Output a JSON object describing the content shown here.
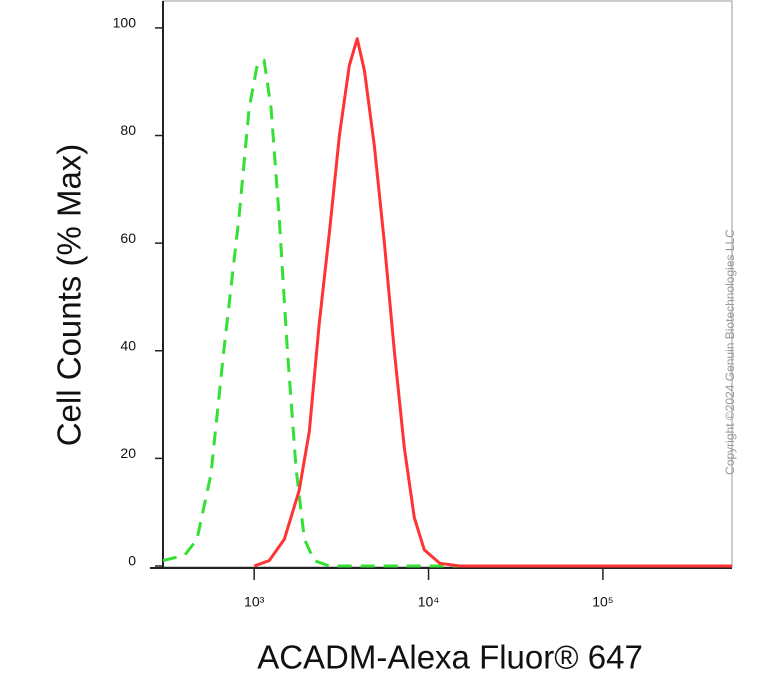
{
  "chart_data": {
    "type": "line",
    "y_label": "Cell Counts (% Max)",
    "x_label": "ACADM-Alexa Fluor® 647",
    "copyright": "Copyright ©2024 Genuin Biotechnologies LLC",
    "xscale": "log",
    "xlim": [
      300,
      550000
    ],
    "ylim": [
      0,
      105
    ],
    "xticks": [
      {
        "value": 1000,
        "label": "10³"
      },
      {
        "value": 10000,
        "label": "10⁴"
      },
      {
        "value": 100000,
        "label": "10⁵"
      }
    ],
    "yticks": [
      0,
      20,
      40,
      60,
      80,
      100
    ],
    "series": [
      {
        "color": "#33e033",
        "dashed": true,
        "x": [
          300,
          400,
          470,
          565,
          670,
          820,
          935,
          1040,
          1140,
          1250,
          1390,
          1550,
          1740,
          1940,
          2210,
          2700,
          550000
        ],
        "values": [
          1,
          2,
          5,
          17,
          40,
          65,
          85,
          93,
          94,
          85,
          65,
          40,
          18,
          5,
          1,
          0,
          0
        ]
      },
      {
        "color": "#ff3333",
        "dashed": false,
        "x": [
          1000,
          1220,
          1490,
          1810,
          2070,
          2360,
          2700,
          3080,
          3510,
          3900,
          4290,
          4890,
          5580,
          6360,
          7260,
          8290,
          9460,
          11600,
          15100,
          550000
        ],
        "values": [
          0,
          1,
          5,
          14,
          25,
          45,
          62,
          80,
          93,
          98,
          92,
          78,
          60,
          40,
          22,
          9,
          3,
          0.5,
          0,
          0
        ]
      }
    ]
  }
}
